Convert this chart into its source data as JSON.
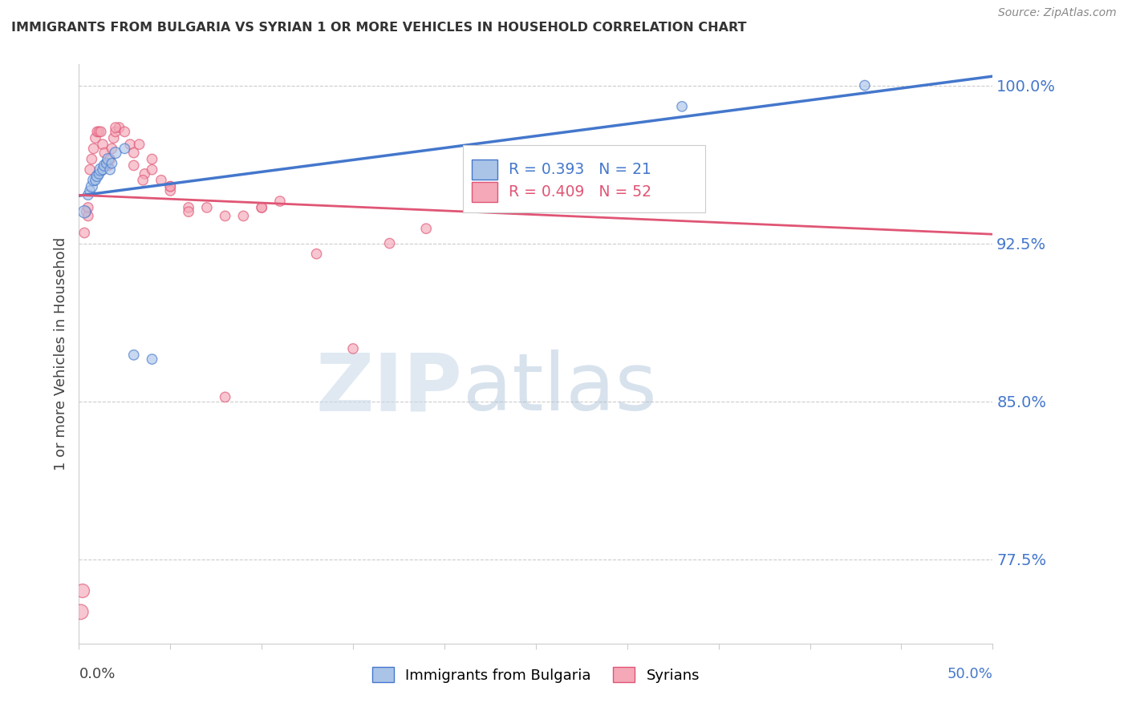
{
  "title": "IMMIGRANTS FROM BULGARIA VS SYRIAN 1 OR MORE VEHICLES IN HOUSEHOLD CORRELATION CHART",
  "source": "Source: ZipAtlas.com",
  "ylabel": "1 or more Vehicles in Household",
  "legend_bulgaria": "Immigrants from Bulgaria",
  "legend_syrians": "Syrians",
  "r_bulgaria": 0.393,
  "n_bulgaria": 21,
  "r_syrians": 0.409,
  "n_syrians": 52,
  "bulgaria_color": "#aac4e8",
  "syrians_color": "#f4a8b8",
  "bulgaria_line_color": "#4477cc",
  "syrians_line_color": "#e05575",
  "bg_color": "#ffffff",
  "watermark_zip": "ZIP",
  "watermark_atlas": "atlas",
  "xlim": [
    0.0,
    0.5
  ],
  "ylim": [
    0.735,
    1.01
  ],
  "ytick_values": [
    0.775,
    0.85,
    0.925,
    1.0
  ],
  "ytick_labels": [
    "77.5%",
    "85.0%",
    "92.5%",
    "100.0%"
  ],
  "grid_color": "#cccccc",
  "bulgaria_x": [
    0.003,
    0.005,
    0.006,
    0.007,
    0.008,
    0.009,
    0.01,
    0.011,
    0.012,
    0.013,
    0.014,
    0.015,
    0.016,
    0.017,
    0.018,
    0.02,
    0.025,
    0.03,
    0.04,
    0.33,
    0.43
  ],
  "bulgaria_y": [
    0.94,
    0.948,
    0.95,
    0.952,
    0.955,
    0.955,
    0.957,
    0.958,
    0.96,
    0.96,
    0.962,
    0.963,
    0.965,
    0.96,
    0.963,
    0.968,
    0.97,
    0.872,
    0.87,
    0.99,
    1.0
  ],
  "bulgaria_size": [
    120,
    80,
    80,
    100,
    100,
    80,
    100,
    80,
    120,
    80,
    100,
    80,
    100,
    80,
    80,
    100,
    80,
    80,
    80,
    80,
    80
  ],
  "syrians_x": [
    0.001,
    0.002,
    0.003,
    0.004,
    0.005,
    0.005,
    0.006,
    0.007,
    0.008,
    0.009,
    0.01,
    0.011,
    0.012,
    0.013,
    0.014,
    0.015,
    0.016,
    0.017,
    0.018,
    0.019,
    0.02,
    0.022,
    0.025,
    0.028,
    0.03,
    0.033,
    0.036,
    0.04,
    0.045,
    0.05,
    0.06,
    0.07,
    0.08,
    0.09,
    0.1,
    0.11,
    0.13,
    0.15,
    0.17,
    0.19,
    0.22,
    0.25,
    0.28,
    0.03,
    0.035,
    0.04,
    0.05,
    0.06,
    0.08,
    0.1,
    0.05,
    0.02
  ],
  "syrians_y": [
    0.75,
    0.76,
    0.93,
    0.94,
    0.938,
    0.942,
    0.96,
    0.965,
    0.97,
    0.975,
    0.978,
    0.978,
    0.978,
    0.972,
    0.968,
    0.962,
    0.962,
    0.965,
    0.97,
    0.975,
    0.978,
    0.98,
    0.978,
    0.972,
    0.968,
    0.972,
    0.958,
    0.96,
    0.955,
    0.952,
    0.942,
    0.942,
    0.852,
    0.938,
    0.942,
    0.945,
    0.92,
    0.875,
    0.925,
    0.932,
    0.955,
    0.96,
    0.962,
    0.962,
    0.955,
    0.965,
    0.95,
    0.94,
    0.938,
    0.942,
    0.952,
    0.98
  ],
  "syrians_size": [
    180,
    150,
    80,
    80,
    80,
    80,
    80,
    80,
    80,
    80,
    80,
    80,
    80,
    80,
    80,
    80,
    80,
    80,
    80,
    80,
    80,
    80,
    80,
    80,
    80,
    80,
    80,
    80,
    80,
    80,
    80,
    80,
    80,
    80,
    80,
    80,
    80,
    80,
    80,
    80,
    80,
    80,
    80,
    80,
    80,
    80,
    80,
    80,
    80,
    80,
    80,
    80
  ]
}
